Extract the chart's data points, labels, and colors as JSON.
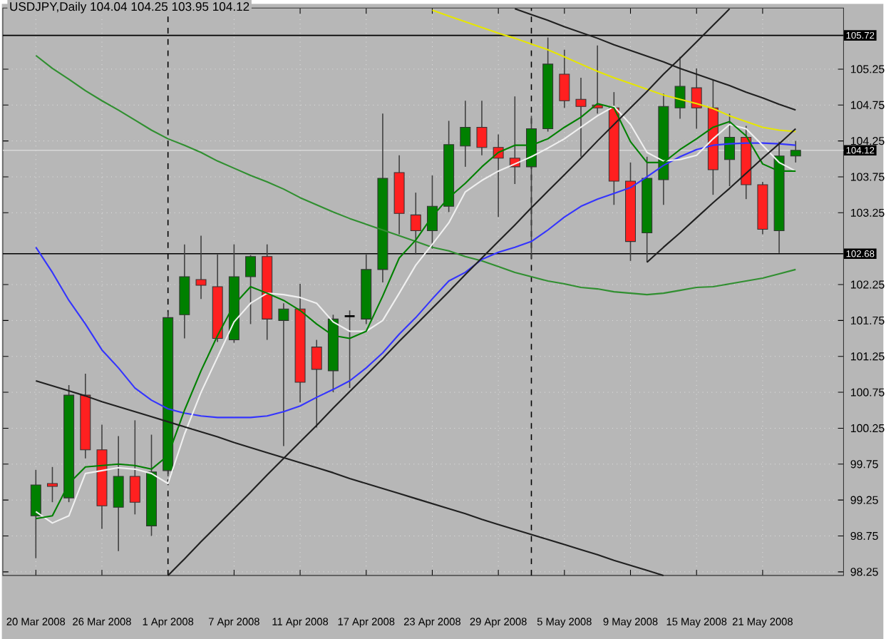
{
  "chart_data": {
    "type": "candlestick",
    "title": "USDJPY,Daily  104.04 104.25 103.95 104.12",
    "categories": [
      "20 Mar 2008",
      null,
      null,
      null,
      "26 Mar 2008",
      null,
      null,
      null,
      "1 Apr 2008",
      null,
      null,
      null,
      "7 Apr 2008",
      null,
      null,
      null,
      "11 Apr 2008",
      null,
      null,
      null,
      "17 Apr 2008",
      null,
      null,
      null,
      "23 Apr 2008",
      null,
      null,
      null,
      "29 Apr 2008",
      null,
      null,
      null,
      "5 May 2008",
      null,
      null,
      null,
      "9 May 2008",
      null,
      null,
      null,
      "15 May 2008",
      null,
      null,
      null,
      "21 May 2008",
      null,
      null
    ],
    "ohlc": [
      [
        99.03,
        99.67,
        98.44,
        99.46
      ],
      [
        99.48,
        99.71,
        99.22,
        99.44
      ],
      [
        99.28,
        100.85,
        99.22,
        100.71
      ],
      [
        100.71,
        101.01,
        99.83,
        99.95
      ],
      [
        99.95,
        100.3,
        98.85,
        99.17
      ],
      [
        99.15,
        100.14,
        98.54,
        99.58
      ],
      [
        99.58,
        100.36,
        99.05,
        99.22
      ],
      [
        98.89,
        100.16,
        98.75,
        99.64
      ],
      [
        99.66,
        101.87,
        99.58,
        101.79
      ],
      [
        101.83,
        102.81,
        101.5,
        102.36
      ],
      [
        102.32,
        102.93,
        102.05,
        102.24
      ],
      [
        102.22,
        102.67,
        101.45,
        101.5
      ],
      [
        101.48,
        102.81,
        101.44,
        102.36
      ],
      [
        102.36,
        102.66,
        101.7,
        102.64
      ],
      [
        102.64,
        102.81,
        101.48,
        101.77
      ],
      [
        101.75,
        101.99,
        100.0,
        101.91
      ],
      [
        101.91,
        102.26,
        100.61,
        100.89
      ],
      [
        101.38,
        101.48,
        100.26,
        101.07
      ],
      [
        101.05,
        101.83,
        100.75,
        101.77
      ],
      [
        101.81,
        101.89,
        100.81,
        101.81
      ],
      [
        101.77,
        102.67,
        101.7,
        102.46
      ],
      [
        102.46,
        104.63,
        102.28,
        103.73
      ],
      [
        103.81,
        104.05,
        102.95,
        103.24
      ],
      [
        103.22,
        103.53,
        102.67,
        103.0
      ],
      [
        103.0,
        103.77,
        102.75,
        103.34
      ],
      [
        103.34,
        104.53,
        103.26,
        104.2
      ],
      [
        104.18,
        104.81,
        103.89,
        104.44
      ],
      [
        104.44,
        104.81,
        104.05,
        104.16
      ],
      [
        104.16,
        104.34,
        103.19,
        104.01
      ],
      [
        104.01,
        104.87,
        103.65,
        103.89
      ],
      [
        103.89,
        104.6,
        102.61,
        104.42
      ],
      [
        104.42,
        105.69,
        104.38,
        105.32
      ],
      [
        105.18,
        105.52,
        104.71,
        104.81
      ],
      [
        104.83,
        105.13,
        104.03,
        104.73
      ],
      [
        104.75,
        105.58,
        104.63,
        104.71
      ],
      [
        104.71,
        104.93,
        103.36,
        103.69
      ],
      [
        103.69,
        103.95,
        102.58,
        102.85
      ],
      [
        102.97,
        104.03,
        102.56,
        103.73
      ],
      [
        103.71,
        104.91,
        103.36,
        104.73
      ],
      [
        104.71,
        105.42,
        104.56,
        105.01
      ],
      [
        104.99,
        105.26,
        104.42,
        104.71
      ],
      [
        104.71,
        105.1,
        103.5,
        103.85
      ],
      [
        103.99,
        104.63,
        103.62,
        104.3
      ],
      [
        104.3,
        104.46,
        103.44,
        103.64
      ],
      [
        103.64,
        103.68,
        102.95,
        103.02
      ],
      [
        103.0,
        104.24,
        102.69,
        104.04
      ],
      [
        104.04,
        104.25,
        103.95,
        104.12
      ]
    ],
    "colors": [
      "#008000",
      "#ff2020",
      "#008000",
      "#ff2020",
      "#ff2020",
      "#008000",
      "#ff2020",
      "#008000",
      "#008000",
      "#008000",
      "#ff2020",
      "#ff2020",
      "#008000",
      "#008000",
      "#ff2020",
      "#008000",
      "#ff2020",
      "#ff2020",
      "#008000",
      "#000000",
      "#008000",
      "#008000",
      "#ff2020",
      "#ff2020",
      "#008000",
      "#008000",
      "#008000",
      "#ff2020",
      "#ff2020",
      "#ff2020",
      "#008000",
      "#008000",
      "#ff2020",
      "#ff2020",
      "#ff2020",
      "#ff2020",
      "#ff2020",
      "#008000",
      "#008000",
      "#008000",
      "#ff2020",
      "#ff2020",
      "#008000",
      "#ff2020",
      "#ff2020",
      "#008000",
      "#008000"
    ],
    "series": [
      {
        "type": "line",
        "color": "#308f30",
        "values": [
          105.44,
          105.26,
          105.11,
          104.95,
          104.81,
          104.68,
          104.54,
          104.4,
          104.28,
          104.19,
          104.09,
          103.97,
          103.87,
          103.77,
          103.68,
          103.58,
          103.46,
          103.36,
          103.26,
          103.17,
          103.09,
          103.01,
          102.93,
          102.85,
          102.77,
          102.72,
          102.64,
          102.58,
          102.5,
          102.42,
          102.36,
          102.3,
          102.26,
          102.21,
          102.19,
          102.15,
          102.13,
          102.11,
          102.13,
          102.17,
          102.21,
          102.22,
          102.26,
          102.3,
          102.34,
          102.4,
          102.46
        ]
      },
      {
        "type": "line",
        "color": "#3434ff",
        "values": [
          102.77,
          102.42,
          102.03,
          101.7,
          101.34,
          101.09,
          100.81,
          100.64,
          100.52,
          100.46,
          100.42,
          100.4,
          100.4,
          100.4,
          100.42,
          100.48,
          100.56,
          100.68,
          100.79,
          100.91,
          101.09,
          101.3,
          101.56,
          101.79,
          102.05,
          102.3,
          102.42,
          102.6,
          102.7,
          102.77,
          102.85,
          103.01,
          103.19,
          103.34,
          103.44,
          103.52,
          103.6,
          103.75,
          103.91,
          104.03,
          104.13,
          104.19,
          104.21,
          104.22,
          104.22,
          104.21,
          104.19
        ]
      },
      {
        "type": "line",
        "color": "#e6e600",
        "values": [
          null,
          null,
          null,
          null,
          null,
          null,
          null,
          null,
          null,
          null,
          null,
          null,
          null,
          null,
          null,
          null,
          null,
          null,
          null,
          null,
          null,
          null,
          null,
          null,
          106.07,
          105.99,
          105.91,
          105.83,
          105.75,
          105.68,
          105.6,
          105.52,
          105.42,
          105.32,
          105.22,
          105.13,
          105.05,
          104.97,
          104.89,
          104.83,
          104.77,
          104.7,
          104.6,
          104.52,
          104.44,
          104.4,
          104.38
        ]
      },
      {
        "type": "line",
        "color": "#f0f0f0",
        "values": [
          99.09,
          98.93,
          99.03,
          99.62,
          99.66,
          99.7,
          99.68,
          99.62,
          99.48,
          100.17,
          100.75,
          101.24,
          101.73,
          101.99,
          102.13,
          102.11,
          102.07,
          101.99,
          101.73,
          101.6,
          101.6,
          101.75,
          102.13,
          102.52,
          102.81,
          103.11,
          103.54,
          103.7,
          103.83,
          103.93,
          104.03,
          104.15,
          104.28,
          104.44,
          104.6,
          104.73,
          104.48,
          104.09,
          103.97,
          103.99,
          104.05,
          104.28,
          104.48,
          104.42,
          104.19,
          103.95,
          103.83
        ]
      },
      {
        "type": "line",
        "color": "#008000",
        "values": [
          98.99,
          99.03,
          99.48,
          99.71,
          99.73,
          99.75,
          99.73,
          99.68,
          99.87,
          100.5,
          101.05,
          101.54,
          101.97,
          102.22,
          102.13,
          102.03,
          101.89,
          101.7,
          101.54,
          101.5,
          101.6,
          102.09,
          102.62,
          102.87,
          103.2,
          103.46,
          103.66,
          103.89,
          104.09,
          104.19,
          104.19,
          104.28,
          104.44,
          104.58,
          104.77,
          104.71,
          104.24,
          103.95,
          103.95,
          104.13,
          104.28,
          104.44,
          104.52,
          104.32,
          103.93,
          103.83,
          103.83
        ]
      },
      {
        "type": "line",
        "color": "#202020",
        "values": [
          100.91,
          100.84,
          100.77,
          100.7,
          100.62,
          100.55,
          100.48,
          100.41,
          100.34,
          100.27,
          100.2,
          100.13,
          100.05,
          99.98,
          99.91,
          99.84,
          99.77,
          99.7,
          99.63,
          99.55,
          99.48,
          99.41,
          99.34,
          99.27,
          99.2,
          99.13,
          99.06,
          98.98,
          98.91,
          98.84,
          98.77,
          98.7,
          98.63,
          98.56,
          98.49,
          98.41,
          98.34,
          98.27,
          98.2,
          null,
          null,
          null,
          null,
          null,
          null,
          null,
          null
        ]
      },
      {
        "type": "line",
        "color": "#202020",
        "values": [
          null,
          null,
          null,
          null,
          null,
          null,
          null,
          null,
          98.2,
          98.43,
          98.67,
          98.9,
          99.13,
          99.36,
          99.6,
          99.83,
          100.06,
          100.29,
          100.53,
          100.76,
          100.99,
          101.22,
          101.46,
          101.69,
          101.92,
          102.15,
          102.39,
          102.62,
          102.85,
          103.08,
          103.32,
          103.55,
          103.78,
          104.01,
          104.25,
          104.48,
          104.71,
          104.94,
          105.18,
          105.4,
          105.63,
          105.86,
          106.09,
          null,
          null,
          null,
          null
        ]
      },
      {
        "type": "line",
        "color": "#202020",
        "values": [
          null,
          null,
          null,
          null,
          null,
          null,
          null,
          null,
          null,
          null,
          null,
          null,
          null,
          null,
          null,
          null,
          null,
          null,
          null,
          null,
          null,
          null,
          null,
          null,
          null,
          null,
          null,
          null,
          null,
          106.09,
          106.01,
          105.93,
          105.84,
          105.76,
          105.68,
          105.59,
          105.51,
          105.43,
          105.35,
          105.26,
          105.18,
          105.1,
          105.02,
          104.93,
          104.85,
          104.76,
          104.68
        ]
      },
      {
        "type": "line",
        "color": "#202020",
        "values": [
          null,
          null,
          null,
          null,
          null,
          null,
          null,
          null,
          null,
          null,
          null,
          null,
          null,
          null,
          null,
          null,
          null,
          null,
          null,
          null,
          null,
          null,
          null,
          null,
          null,
          null,
          null,
          null,
          null,
          null,
          null,
          null,
          null,
          null,
          null,
          null,
          null,
          102.56,
          102.77,
          102.97,
          103.18,
          103.39,
          103.59,
          103.8,
          104.01,
          104.21,
          104.42
        ]
      }
    ],
    "ylim": [
      98.2,
      106.1
    ],
    "yticks": [
      98.25,
      98.75,
      99.25,
      99.75,
      100.25,
      100.75,
      101.25,
      101.75,
      102.25,
      103.25,
      103.75,
      104.25,
      104.75,
      105.25
    ],
    "ref_lines": [
      {
        "axis": "y",
        "value": 105.72,
        "label": "105.72",
        "color": "#000000"
      },
      {
        "axis": "y",
        "value": 102.68,
        "label": "102.68",
        "color": "#000000"
      },
      {
        "axis": "y",
        "value": 104.12,
        "label": "104.12",
        "color": "#d8d8d8"
      }
    ],
    "grid": true
  }
}
